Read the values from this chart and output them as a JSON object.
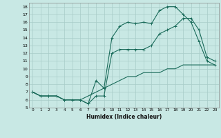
{
  "title": "",
  "xlabel": "Humidex (Indice chaleur)",
  "background_color": "#c8e8e4",
  "grid_color": "#a8ccc8",
  "line_color": "#1a6b5a",
  "xlim": [
    -0.5,
    23.5
  ],
  "ylim": [
    5,
    18.5
  ],
  "yticks": [
    5,
    6,
    7,
    8,
    9,
    10,
    11,
    12,
    13,
    14,
    15,
    16,
    17,
    18
  ],
  "xticks": [
    0,
    1,
    2,
    3,
    4,
    5,
    6,
    7,
    8,
    9,
    10,
    11,
    12,
    13,
    14,
    15,
    16,
    17,
    18,
    19,
    20,
    21,
    22,
    23
  ],
  "line1_x": [
    0,
    1,
    2,
    3,
    4,
    5,
    6,
    7,
    8,
    9,
    10,
    11,
    12,
    13,
    14,
    15,
    16,
    17,
    18,
    19,
    20,
    21,
    22,
    23
  ],
  "line1_y": [
    7.0,
    6.5,
    6.5,
    6.5,
    6.0,
    6.0,
    6.0,
    5.5,
    8.5,
    7.5,
    14.0,
    15.5,
    16.0,
    15.8,
    16.0,
    15.8,
    17.5,
    18.0,
    18.0,
    17.0,
    16.0,
    13.5,
    11.0,
    10.5
  ],
  "line2_x": [
    0,
    1,
    2,
    3,
    4,
    5,
    6,
    7,
    8,
    9,
    10,
    11,
    12,
    13,
    14,
    15,
    16,
    17,
    18,
    19,
    20,
    21,
    22,
    23
  ],
  "line2_y": [
    7.0,
    6.5,
    6.5,
    6.5,
    6.0,
    6.0,
    6.0,
    5.5,
    6.5,
    6.5,
    12.0,
    12.5,
    12.5,
    12.5,
    12.5,
    13.0,
    14.5,
    15.0,
    15.5,
    16.5,
    16.5,
    15.0,
    11.5,
    11.0
  ],
  "line3_x": [
    0,
    1,
    2,
    3,
    4,
    5,
    6,
    7,
    8,
    9,
    10,
    11,
    12,
    13,
    14,
    15,
    16,
    17,
    18,
    19,
    20,
    21,
    22,
    23
  ],
  "line3_y": [
    7.0,
    6.5,
    6.5,
    6.5,
    6.0,
    6.0,
    6.0,
    6.5,
    7.0,
    7.5,
    8.0,
    8.5,
    9.0,
    9.0,
    9.5,
    9.5,
    9.5,
    10.0,
    10.0,
    10.5,
    10.5,
    10.5,
    10.5,
    10.5
  ]
}
